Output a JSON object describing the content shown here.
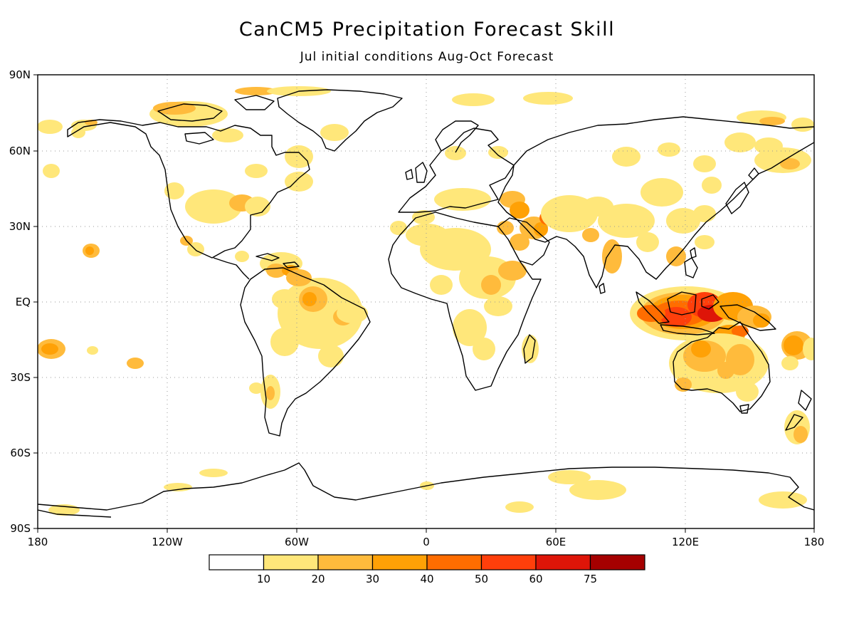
{
  "title": "CanCM5 Precipitation Forecast Skill",
  "subtitle": "Jul initial conditions   Aug-Oct Forecast",
  "lat_labels": [
    "90N",
    "60N",
    "30N",
    "EQ",
    "30S",
    "60S",
    "90S"
  ],
  "lon_labels": [
    "180",
    "120W",
    "60W",
    "0",
    "60E",
    "120E",
    "180"
  ],
  "colorbar": {
    "levels": [
      "10",
      "20",
      "30",
      "40",
      "50",
      "60",
      "75"
    ],
    "colors": [
      "#ffffff",
      "#ffe77a",
      "#ffbb3c",
      "#ffa106",
      "#ff6d00",
      "#ff3f0b",
      "#de1508",
      "#a50000"
    ]
  },
  "skill_colors": {
    "c10": "#ffe77a",
    "c20": "#ffbb3c",
    "c30": "#ffa106",
    "c40": "#ff6d00",
    "c50": "#ff3f0b",
    "c60": "#de1508"
  }
}
